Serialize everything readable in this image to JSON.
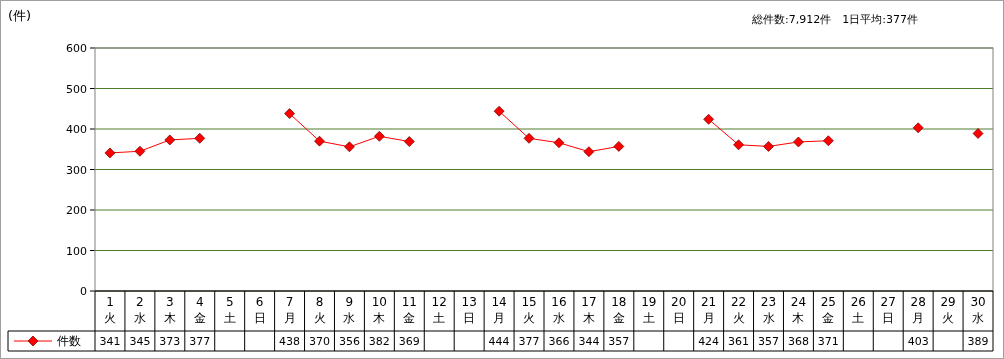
{
  "chart_data": {
    "type": "line",
    "ylabel": "(件)",
    "annotations": [
      "総件数:7,912件　1日平均:377件"
    ],
    "categories": [
      "1\n火",
      "2\n水",
      "3\n木",
      "4\n金",
      "5\n土",
      "6\n日",
      "7\n月",
      "8\n火",
      "9\n水",
      "10\n木",
      "11\n金",
      "12\n土",
      "13\n日",
      "14\n月",
      "15\n火",
      "16\n水",
      "17\n木",
      "18\n金",
      "19\n土",
      "20\n日",
      "21\n月",
      "22\n火",
      "23\n水",
      "24\n木",
      "25\n金",
      "26\n土",
      "27\n日",
      "28\n月",
      "29\n火",
      "30\n水"
    ],
    "series": [
      {
        "name": "件数",
        "color": "#ff0000",
        "values": [
          341,
          345,
          373,
          377,
          null,
          null,
          438,
          370,
          356,
          382,
          369,
          null,
          null,
          444,
          377,
          366,
          344,
          357,
          null,
          null,
          424,
          361,
          357,
          368,
          371,
          null,
          null,
          403,
          null,
          389
        ]
      }
    ],
    "ylim": [
      0,
      600
    ],
    "yticks": [
      0,
      100,
      200,
      300,
      400,
      500,
      600
    ],
    "grid": "y",
    "legend": "bottom",
    "data_labels": true,
    "marker": "diamond",
    "line_style": "solid"
  }
}
